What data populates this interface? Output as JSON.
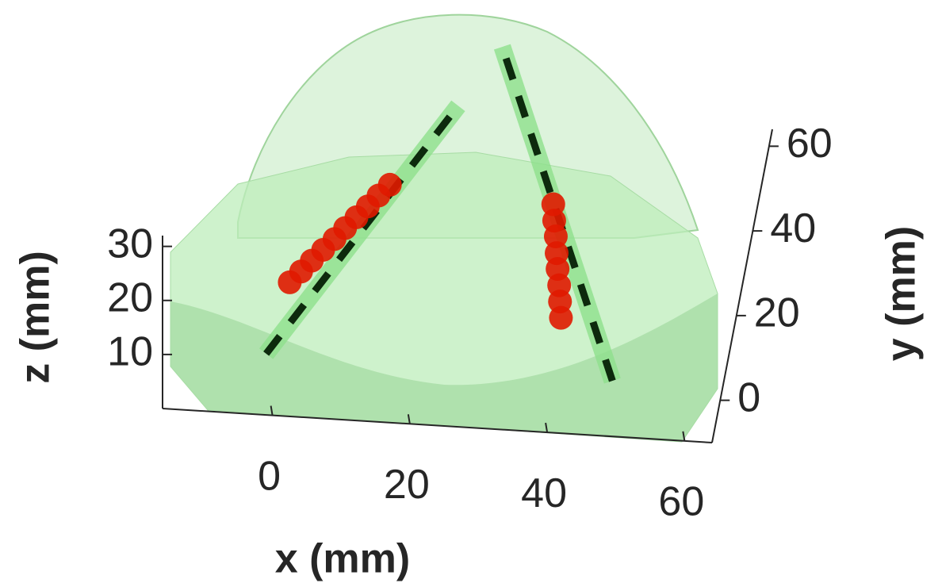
{
  "chart_data": {
    "type": "scatter3d",
    "xlabel": "x (mm)",
    "ylabel": "y (mm)",
    "zlabel": "z (mm)",
    "xlim": [
      -16,
      64
    ],
    "ylim": [
      -10,
      64
    ],
    "zlim": [
      0,
      32
    ],
    "xticks": [
      0,
      20,
      40,
      60
    ],
    "yticks": [
      0,
      20,
      40,
      60
    ],
    "zticks": [
      10,
      20,
      30
    ],
    "lines": [
      {
        "color": "#0d2a0d",
        "x": [
          -2.1,
          21.9
        ],
        "y": [
          0,
          33.4
        ],
        "z": [
          3.4,
          25
        ]
      },
      {
        "color": "#0d2a0d",
        "x": [
          48.4,
          26.6
        ],
        "y": [
          -0.8,
          47.8
        ],
        "z": [
          3,
          25
        ]
      }
    ],
    "series": [
      {
        "color": "#e01a00",
        "x": [
          1.5,
          3,
          4.4,
          5.9,
          7.4,
          8.8,
          10.3,
          11.8,
          13.2,
          14.7
        ],
        "y": [
          -1.4,
          -0.1,
          1.2,
          2.5,
          3.8,
          5,
          6.3,
          7.6,
          8.9,
          10.2
        ],
        "z": [
          18,
          19.1,
          20.2,
          21.3,
          22.4,
          23.6,
          24.7,
          25.8,
          26.9,
          28
        ]
      },
      {
        "color": "#e01a00",
        "x": [
          38.3,
          38.6,
          39,
          39.3,
          39.6,
          40,
          40.3,
          40.6
        ],
        "y": [
          11.8,
          10.4,
          9,
          7.5,
          6.1,
          4.7,
          3.2,
          1.8
        ],
        "z": [
          25,
          23.1,
          21.3,
          19.4,
          17.6,
          15.7,
          13.9,
          12
        ]
      }
    ]
  }
}
